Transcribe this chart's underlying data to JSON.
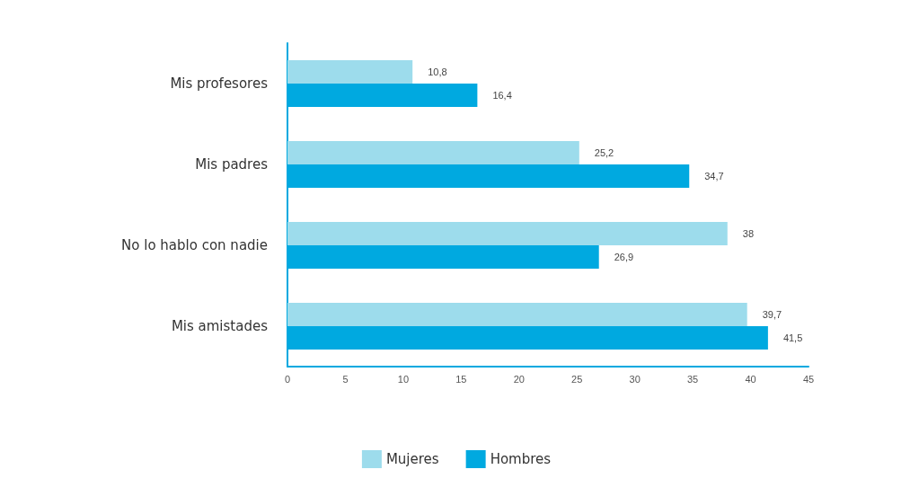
{
  "chart_data": {
    "type": "bar",
    "orientation": "horizontal",
    "categories": [
      "Mis profesores",
      "Mis padres",
      "No lo hablo con nadie",
      "Mis amistades"
    ],
    "series": [
      {
        "name": "Mujeres",
        "color": "#9ddcec",
        "values": [
          10.8,
          25.2,
          38,
          39.7
        ],
        "value_labels": [
          "10,8",
          "25,2",
          "38",
          "39,7"
        ]
      },
      {
        "name": "Hombres",
        "color": "#00a9e0",
        "values": [
          16.4,
          34.7,
          26.9,
          41.5
        ],
        "value_labels": [
          "16,4",
          "34,7",
          "26,9",
          "41,5"
        ]
      }
    ],
    "xlim": [
      0,
      45
    ],
    "xticks": [
      0,
      5,
      10,
      15,
      20,
      25,
      30,
      35,
      40,
      45
    ],
    "grid": false,
    "legend": "bottom"
  }
}
